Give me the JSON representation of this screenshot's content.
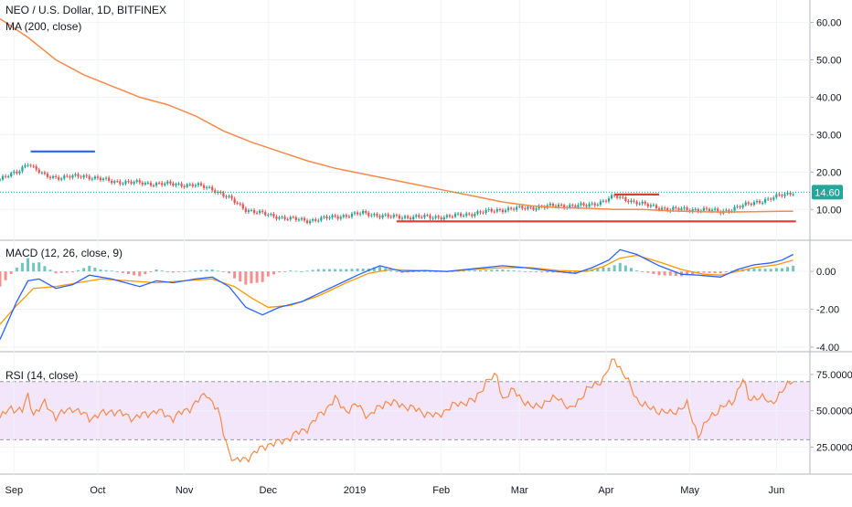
{
  "header": {
    "symbol_line": "NEO / U.S. Dollar, 1D, BITFINEX",
    "ma_label": "MA (200, close)",
    "macd_label": "MACD (12, 26, close, 9)",
    "rsi_label": "RSI (14, close)"
  },
  "colors": {
    "bull": "#26a69a",
    "bear": "#ef5350",
    "ma": "#f7894a",
    "macd": "#2962ff",
    "signal": "#ff9800",
    "hist_pos": "#26a69a",
    "hist_neg": "#ef5350",
    "rsi": "#f7894a",
    "rsi_band": "#f3e6fb",
    "price_tag": "#26a69a",
    "blue_line": "#2962ff",
    "red_line": "#e53935"
  },
  "chart_data": [
    {
      "type": "candlestick",
      "pane": "price",
      "title": "NEO / U.S. Dollar, 1D, BITFINEX",
      "y_ticks": [
        "60.00",
        "50.00",
        "40.00",
        "30.00",
        "20.00",
        "10.00"
      ],
      "y_tick_values": [
        60,
        50,
        40,
        30,
        20,
        10
      ],
      "ylim": [
        2,
        66
      ],
      "x_ticks": [
        "Sep",
        "Oct",
        "Nov",
        "Dec",
        "2019",
        "Feb",
        "Mar",
        "Apr",
        "May",
        "Jun"
      ],
      "x_tick_days": [
        5,
        35,
        66,
        96,
        127,
        158,
        186,
        217,
        247,
        278
      ],
      "xlim": [
        0,
        290
      ],
      "last_price": "14.60",
      "last_price_value": 14.6,
      "close_points": [
        [
          0,
          18
        ],
        [
          6,
          20
        ],
        [
          10,
          22.5
        ],
        [
          12,
          21
        ],
        [
          16,
          19
        ],
        [
          22,
          18.5
        ],
        [
          30,
          19
        ],
        [
          40,
          17.5
        ],
        [
          52,
          17
        ],
        [
          70,
          16.5
        ],
        [
          76,
          15.5
        ],
        [
          82,
          13
        ],
        [
          88,
          10
        ],
        [
          96,
          8.5
        ],
        [
          104,
          7.5
        ],
        [
          110,
          7
        ],
        [
          120,
          8
        ],
        [
          130,
          9
        ],
        [
          140,
          8
        ],
        [
          150,
          8
        ],
        [
          160,
          8
        ],
        [
          170,
          9
        ],
        [
          180,
          10
        ],
        [
          190,
          10.5
        ],
        [
          200,
          11
        ],
        [
          210,
          11
        ],
        [
          215,
          12
        ],
        [
          220,
          13.5
        ],
        [
          225,
          12.5
        ],
        [
          232,
          11
        ],
        [
          240,
          10
        ],
        [
          250,
          10
        ],
        [
          258,
          9.5
        ],
        [
          262,
          10
        ],
        [
          266,
          11
        ],
        [
          270,
          12
        ],
        [
          275,
          12.5
        ],
        [
          280,
          14
        ],
        [
          284,
          14.6
        ]
      ],
      "ma_200": {
        "name": "MA (200, close)",
        "points": [
          [
            0,
            61
          ],
          [
            10,
            56
          ],
          [
            20,
            50
          ],
          [
            30,
            46
          ],
          [
            40,
            43
          ],
          [
            50,
            40
          ],
          [
            60,
            38
          ],
          [
            70,
            35
          ],
          [
            80,
            31
          ],
          [
            90,
            28
          ],
          [
            100,
            25.5
          ],
          [
            110,
            23
          ],
          [
            120,
            21
          ],
          [
            130,
            19.5
          ],
          [
            140,
            18
          ],
          [
            150,
            16.5
          ],
          [
            160,
            15
          ],
          [
            170,
            13.5
          ],
          [
            180,
            12
          ],
          [
            190,
            11
          ],
          [
            200,
            10.5
          ],
          [
            210,
            10.3
          ],
          [
            220,
            10
          ],
          [
            230,
            10
          ],
          [
            240,
            9.6
          ],
          [
            250,
            9.4
          ],
          [
            260,
            9.3
          ],
          [
            270,
            9.4
          ],
          [
            280,
            9.5
          ],
          [
            284,
            9.5
          ]
        ]
      },
      "trend_lines": [
        {
          "color": "blue",
          "points": [
            [
              11,
              25.5
            ],
            [
              34,
              25.5
            ]
          ]
        },
        {
          "color": "red",
          "points": [
            [
              220,
              14
            ],
            [
              236,
              14
            ]
          ]
        },
        {
          "color": "red",
          "points": [
            [
              142,
              6.8
            ],
            [
              285,
              6.8
            ]
          ]
        }
      ]
    },
    {
      "type": "macd",
      "pane": "macd",
      "title": "MACD (12, 26, close, 9)",
      "y_ticks": [
        "0.00",
        "-2.00",
        "-4.00"
      ],
      "y_tick_values": [
        0,
        -2,
        -4
      ],
      "ylim": [
        -4.2,
        1.6
      ],
      "macd_points": [
        [
          0,
          -3.6
        ],
        [
          6,
          -1.6
        ],
        [
          10,
          -0.5
        ],
        [
          14,
          -0.4
        ],
        [
          20,
          -0.9
        ],
        [
          26,
          -0.7
        ],
        [
          32,
          -0.2
        ],
        [
          40,
          -0.4
        ],
        [
          50,
          -0.8
        ],
        [
          56,
          -0.5
        ],
        [
          62,
          -0.6
        ],
        [
          70,
          -0.4
        ],
        [
          76,
          -0.3
        ],
        [
          82,
          -0.8
        ],
        [
          88,
          -1.9
        ],
        [
          94,
          -2.3
        ],
        [
          100,
          -1.9
        ],
        [
          108,
          -1.6
        ],
        [
          118,
          -0.9
        ],
        [
          128,
          -0.2
        ],
        [
          136,
          0.3
        ],
        [
          144,
          0.0
        ],
        [
          152,
          0.05
        ],
        [
          160,
          0.0
        ],
        [
          170,
          0.15
        ],
        [
          180,
          0.3
        ],
        [
          188,
          0.2
        ],
        [
          196,
          0.05
        ],
        [
          206,
          -0.1
        ],
        [
          212,
          0.2
        ],
        [
          218,
          0.6
        ],
        [
          222,
          1.15
        ],
        [
          228,
          0.9
        ],
        [
          236,
          0.3
        ],
        [
          244,
          -0.15
        ],
        [
          250,
          -0.2
        ],
        [
          258,
          -0.3
        ],
        [
          264,
          0.1
        ],
        [
          270,
          0.35
        ],
        [
          276,
          0.45
        ],
        [
          280,
          0.6
        ],
        [
          284,
          0.9
        ]
      ],
      "signal_points": [
        [
          0,
          -2.8
        ],
        [
          6,
          -1.8
        ],
        [
          12,
          -0.9
        ],
        [
          20,
          -0.8
        ],
        [
          28,
          -0.6
        ],
        [
          36,
          -0.4
        ],
        [
          46,
          -0.5
        ],
        [
          56,
          -0.6
        ],
        [
          66,
          -0.5
        ],
        [
          76,
          -0.4
        ],
        [
          84,
          -0.8
        ],
        [
          90,
          -1.4
        ],
        [
          96,
          -1.9
        ],
        [
          104,
          -1.8
        ],
        [
          114,
          -1.3
        ],
        [
          124,
          -0.6
        ],
        [
          132,
          -0.1
        ],
        [
          140,
          0.1
        ],
        [
          150,
          0.05
        ],
        [
          160,
          0.0
        ],
        [
          170,
          0.1
        ],
        [
          180,
          0.2
        ],
        [
          190,
          0.2
        ],
        [
          200,
          0.05
        ],
        [
          210,
          0.0
        ],
        [
          216,
          0.25
        ],
        [
          222,
          0.7
        ],
        [
          228,
          0.85
        ],
        [
          236,
          0.5
        ],
        [
          244,
          0.1
        ],
        [
          252,
          -0.15
        ],
        [
          258,
          -0.2
        ],
        [
          264,
          0.0
        ],
        [
          270,
          0.2
        ],
        [
          278,
          0.35
        ],
        [
          284,
          0.6
        ]
      ]
    },
    {
      "type": "line",
      "pane": "rsi",
      "title": "RSI (14, close)",
      "y_ticks": [
        "75.0000",
        "50.0000",
        "25.0000"
      ],
      "y_tick_values": [
        75,
        50,
        25
      ],
      "ylim": [
        7,
        90
      ],
      "band": [
        30,
        70
      ],
      "points": [
        [
          0,
          45
        ],
        [
          4,
          52
        ],
        [
          8,
          50
        ],
        [
          10,
          60
        ],
        [
          12,
          48
        ],
        [
          16,
          55
        ],
        [
          20,
          46
        ],
        [
          26,
          52
        ],
        [
          32,
          45
        ],
        [
          40,
          50
        ],
        [
          48,
          45
        ],
        [
          56,
          50
        ],
        [
          62,
          45
        ],
        [
          68,
          52
        ],
        [
          74,
          62
        ],
        [
          78,
          50
        ],
        [
          80,
          35
        ],
        [
          82,
          22
        ],
        [
          84,
          15
        ],
        [
          88,
          17
        ],
        [
          92,
          22
        ],
        [
          96,
          27
        ],
        [
          100,
          28
        ],
        [
          104,
          32
        ],
        [
          110,
          38
        ],
        [
          116,
          50
        ],
        [
          120,
          58
        ],
        [
          124,
          50
        ],
        [
          128,
          54
        ],
        [
          132,
          46
        ],
        [
          138,
          56
        ],
        [
          144,
          54
        ],
        [
          150,
          50
        ],
        [
          156,
          46
        ],
        [
          160,
          51
        ],
        [
          164,
          55
        ],
        [
          170,
          57
        ],
        [
          174,
          70
        ],
        [
          178,
          74
        ],
        [
          180,
          58
        ],
        [
          184,
          64
        ],
        [
          190,
          52
        ],
        [
          196,
          56
        ],
        [
          200,
          60
        ],
        [
          204,
          50
        ],
        [
          210,
          64
        ],
        [
          216,
          72
        ],
        [
          220,
          86
        ],
        [
          224,
          73
        ],
        [
          228,
          58
        ],
        [
          232,
          52
        ],
        [
          240,
          48
        ],
        [
          246,
          54
        ],
        [
          250,
          33
        ],
        [
          254,
          45
        ],
        [
          258,
          52
        ],
        [
          262,
          55
        ],
        [
          266,
          72
        ],
        [
          268,
          58
        ],
        [
          272,
          60
        ],
        [
          276,
          55
        ],
        [
          280,
          63
        ],
        [
          284,
          72
        ]
      ]
    }
  ]
}
